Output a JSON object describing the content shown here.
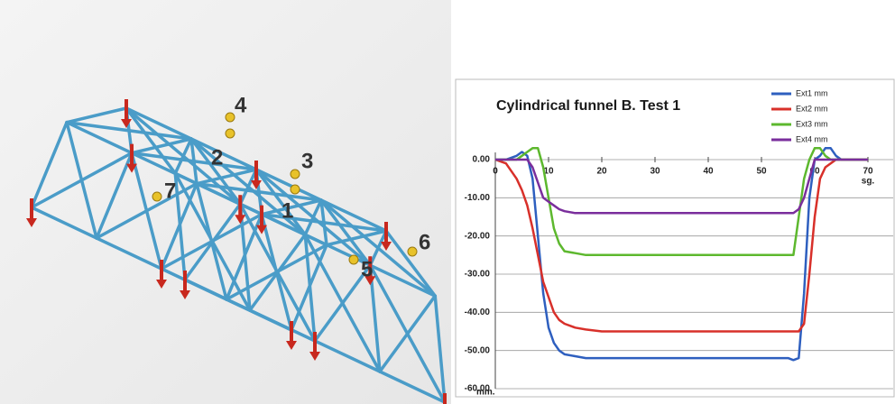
{
  "structure_labels": [
    "1",
    "2",
    "3",
    "4",
    "5",
    "6",
    "7"
  ],
  "chart_data": {
    "type": "line",
    "title": "Cylindrical funnel B. Test 1",
    "xlabel": "sg.",
    "ylabel": "mm.",
    "x": [
      0,
      2,
      4,
      5,
      6,
      7,
      8,
      9,
      10,
      11,
      12,
      13,
      15,
      17,
      20,
      30,
      40,
      50,
      55,
      56,
      57,
      58,
      59,
      60,
      61,
      62,
      63,
      64,
      65,
      68,
      70
    ],
    "series": [
      {
        "name": "Ext1 mm",
        "color": "#2e5fbf",
        "values": [
          0,
          0,
          1,
          2,
          1,
          -5,
          -20,
          -35,
          -44,
          -48,
          -50,
          -51,
          -51.5,
          -52,
          -52,
          -52,
          -52,
          -52,
          -52,
          -52.5,
          -52,
          -35,
          -10,
          0,
          1,
          3,
          3,
          1,
          0,
          0,
          0
        ]
      },
      {
        "name": "Ext2 mm",
        "color": "#d8302a",
        "values": [
          0,
          -1,
          -5,
          -8,
          -12,
          -18,
          -25,
          -32,
          -36,
          -40,
          -42,
          -43,
          -44,
          -44.5,
          -45,
          -45,
          -45,
          -45,
          -45,
          -45,
          -45,
          -43,
          -30,
          -15,
          -5,
          -2,
          -1,
          0,
          0,
          0,
          0
        ]
      },
      {
        "name": "Ext3 mm",
        "color": "#5db82e",
        "values": [
          0,
          0,
          0,
          1,
          2,
          3,
          3,
          -2,
          -10,
          -18,
          -22,
          -24,
          -24.5,
          -25,
          -25,
          -25,
          -25,
          -25,
          -25,
          -25,
          -15,
          -5,
          0,
          3,
          3,
          1,
          0,
          0,
          0,
          0,
          0
        ]
      },
      {
        "name": "Ext4 mm",
        "color": "#7a2e9c",
        "values": [
          0,
          0,
          0,
          0,
          0,
          -2,
          -6,
          -10,
          -11,
          -12,
          -13,
          -13.5,
          -14,
          -14,
          -14,
          -14,
          -14,
          -14,
          -14,
          -14,
          -13,
          -10,
          -5,
          0,
          0,
          0,
          0,
          0,
          0,
          0,
          0
        ]
      }
    ],
    "xlim": [
      0,
      70
    ],
    "xticks": [
      0,
      10,
      20,
      30,
      40,
      50,
      60,
      70
    ],
    "ylim": [
      -60,
      0
    ],
    "yticks": [
      {
        "value": 0,
        "label": "0.00"
      },
      {
        "value": -10,
        "label": "-10.00"
      },
      {
        "value": -20,
        "label": "-20.00"
      },
      {
        "value": -30,
        "label": "-30.00"
      },
      {
        "value": -40,
        "label": "-40.00"
      },
      {
        "value": -50,
        "label": "-50.00"
      },
      {
        "value": -60,
        "label": "-60.00"
      }
    ],
    "grid": true,
    "legend": "top-right"
  }
}
